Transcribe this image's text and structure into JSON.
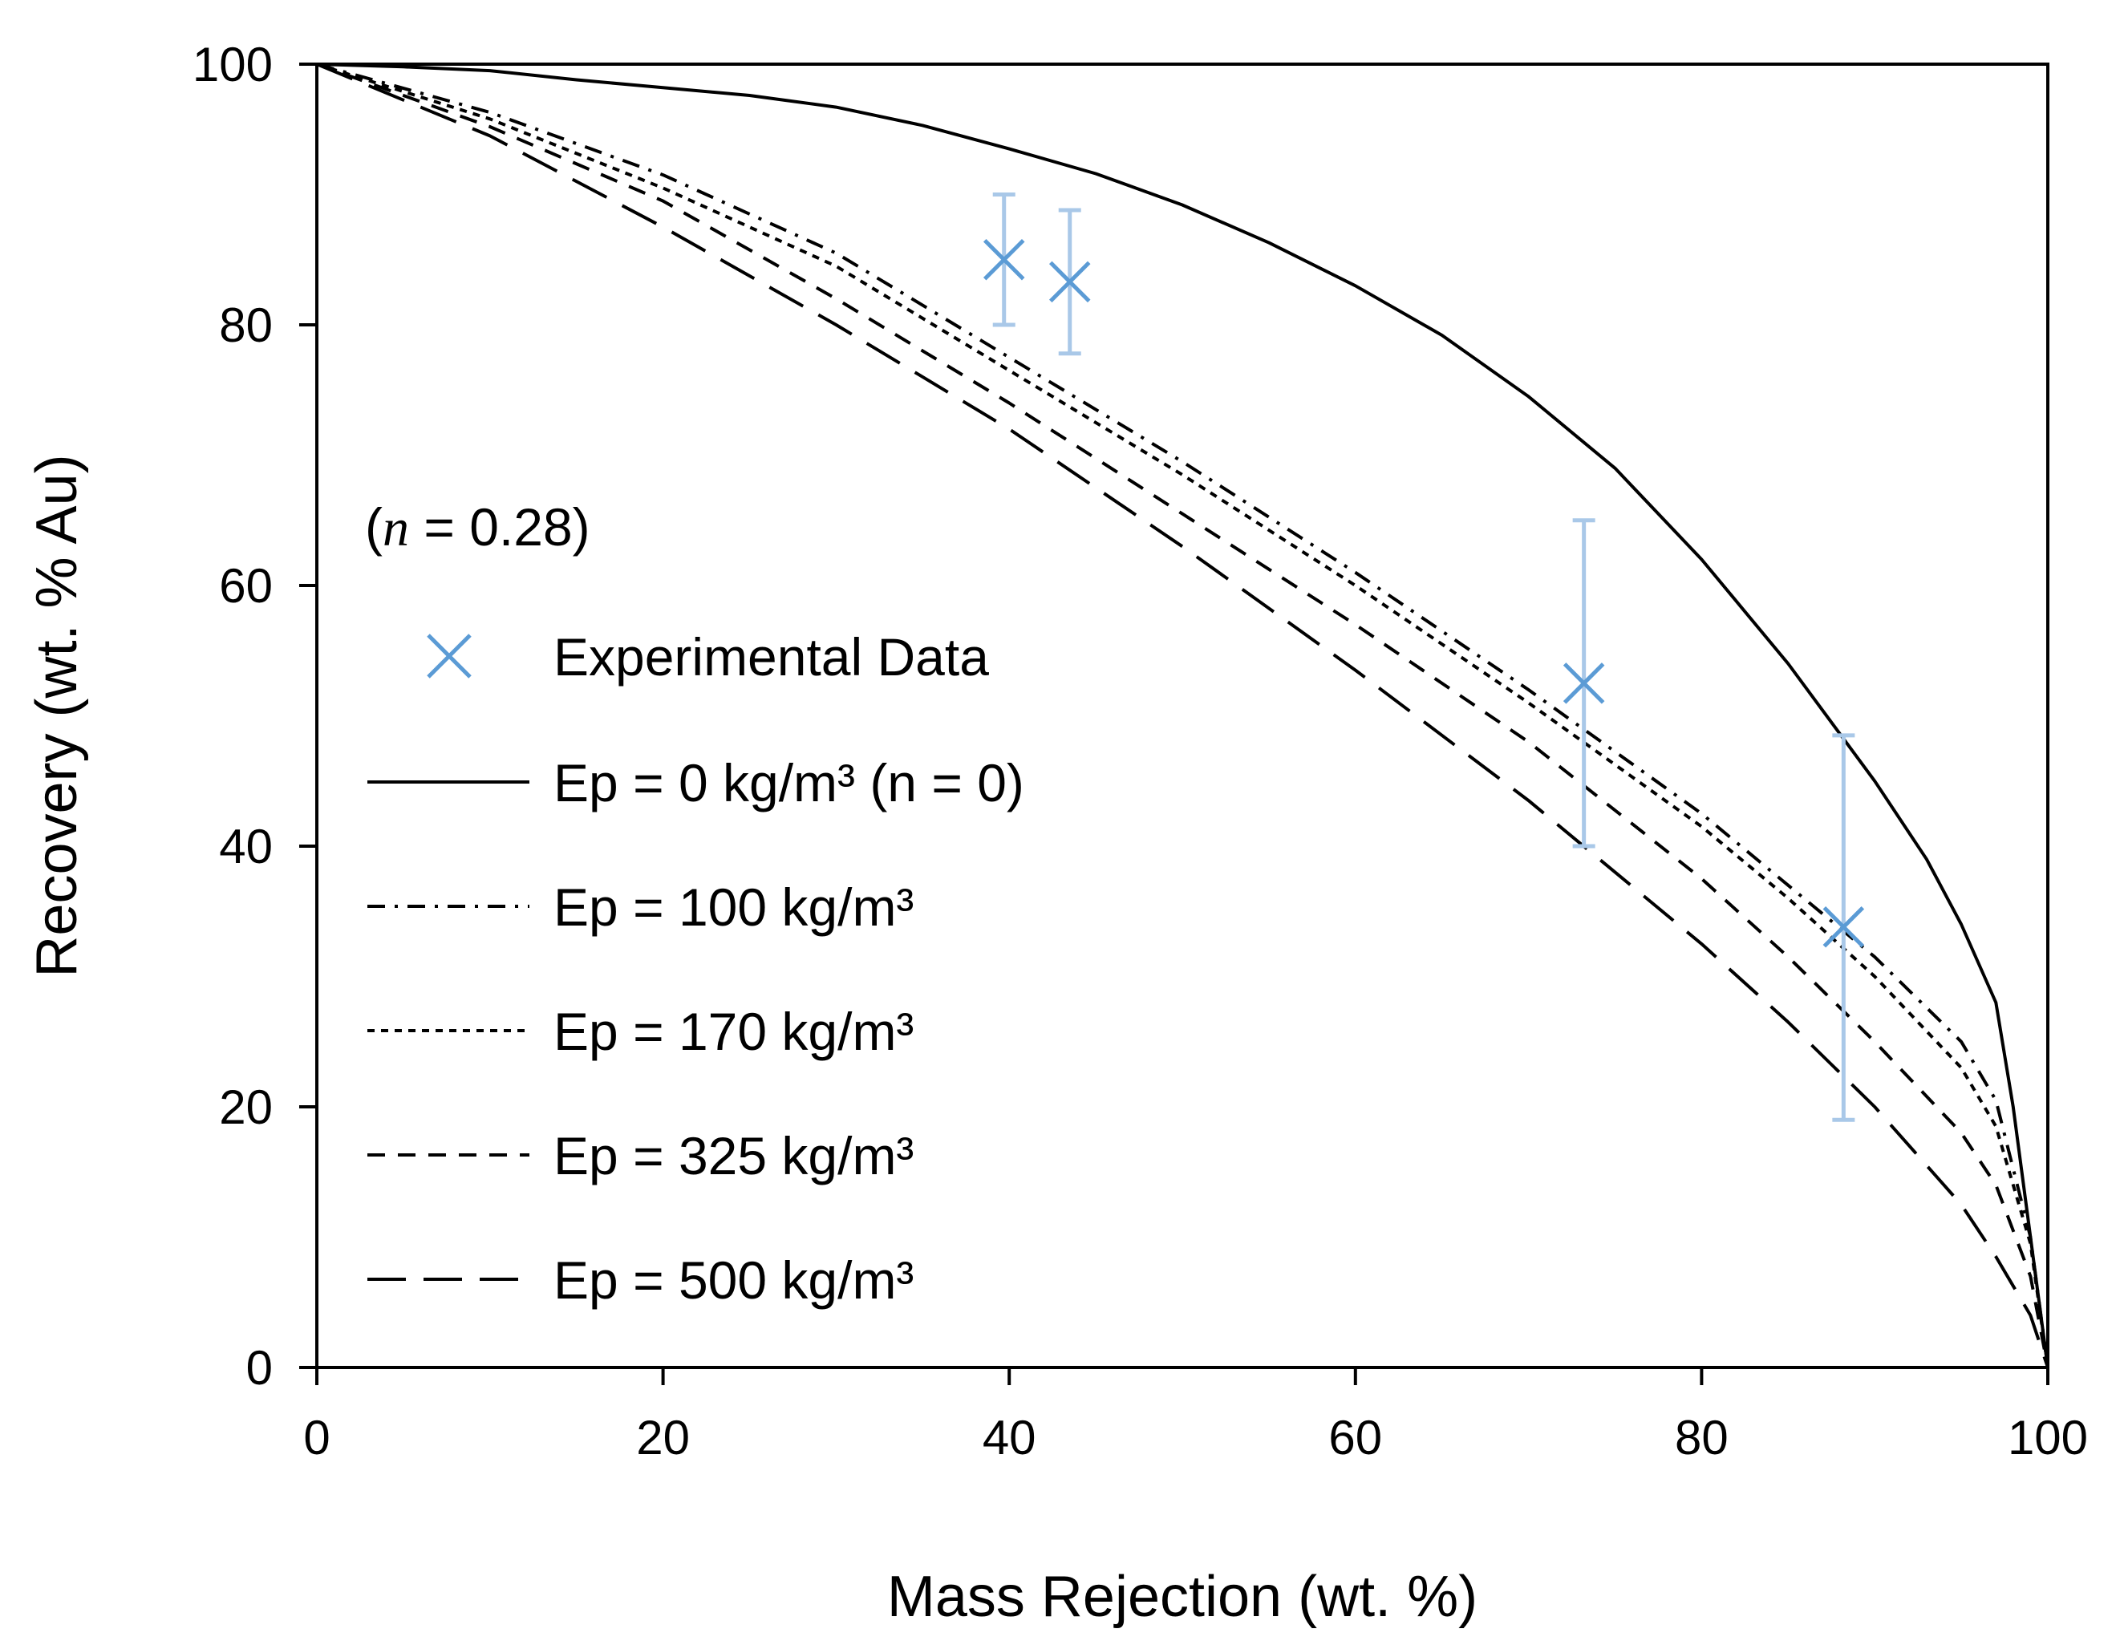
{
  "chart_data": {
    "type": "line",
    "title": "",
    "xlabel": "Mass Rejection (wt. %)",
    "ylabel": "Recovery (wt. % Au)",
    "xlim": [
      0,
      100
    ],
    "ylim": [
      0,
      100
    ],
    "x_ticks": [
      0,
      20,
      40,
      60,
      80,
      100
    ],
    "y_ticks": [
      0,
      20,
      40,
      60,
      80,
      100
    ],
    "x_tick_labels": [
      "0",
      "20",
      "40",
      "60",
      "80",
      "100"
    ],
    "y_tick_labels": [
      "0",
      "20",
      "40",
      "60",
      "80",
      "100"
    ],
    "grid": false,
    "legend_position": "center-left",
    "annotation": {
      "open_paren": "(",
      "symbol": "n",
      "value_text": " = 0.28)"
    },
    "series": [
      {
        "name": "Experimental Data",
        "kind": "scatter",
        "color": "#5b9bd5",
        "errorbar_color": "#a9c8e8",
        "points": [
          {
            "x": 39.7,
            "y": 85.0,
            "ylow": 80.0,
            "yhigh": 90.0
          },
          {
            "x": 43.5,
            "y": 83.3,
            "ylow": 77.8,
            "yhigh": 88.8
          },
          {
            "x": 73.2,
            "y": 52.5,
            "ylow": 40.0,
            "yhigh": 65.0
          },
          {
            "x": 88.2,
            "y": 33.8,
            "ylow": 19.0,
            "yhigh": 48.5
          }
        ]
      },
      {
        "name": "Ep = 0 kg/m³ (n = 0)",
        "kind": "line",
        "dash": "solid",
        "color": "#000000",
        "x": [
          0,
          5,
          10,
          15,
          20,
          25,
          30,
          35,
          40,
          45,
          50,
          55,
          60,
          65,
          70,
          75,
          80,
          85,
          90,
          93,
          95,
          97,
          98,
          99,
          100
        ],
        "y": [
          100,
          99.8,
          99.5,
          98.8,
          98.2,
          97.6,
          96.7,
          95.3,
          93.5,
          91.6,
          89.2,
          86.3,
          83.0,
          79.2,
          74.5,
          69.0,
          62.0,
          54.0,
          45.0,
          39.0,
          34.0,
          28.0,
          20.0,
          10.0,
          0
        ]
      },
      {
        "name": "Ep = 100 kg/m³",
        "kind": "line",
        "dash": "dashdot",
        "color": "#000000",
        "x": [
          0,
          10,
          20,
          30,
          40,
          50,
          60,
          70,
          80,
          85,
          90,
          95,
          97,
          99,
          100
        ],
        "y": [
          100,
          96.3,
          91.5,
          85.5,
          77.5,
          69.5,
          61.0,
          52.0,
          42.5,
          37.0,
          31.5,
          25.0,
          20.5,
          10.0,
          0
        ]
      },
      {
        "name": "Ep = 170 kg/m³",
        "kind": "line",
        "dash": "dotted",
        "color": "#000000",
        "x": [
          0,
          10,
          20,
          30,
          40,
          50,
          60,
          70,
          80,
          85,
          90,
          95,
          97,
          99,
          100
        ],
        "y": [
          100,
          95.8,
          90.5,
          84.5,
          76.5,
          68.5,
          60.0,
          51.0,
          41.5,
          36.0,
          30.0,
          23.0,
          18.5,
          9.5,
          0
        ]
      },
      {
        "name": "Ep = 325 kg/m³",
        "kind": "line",
        "dash": "dashed",
        "color": "#000000",
        "x": [
          0,
          10,
          20,
          30,
          40,
          50,
          60,
          70,
          80,
          85,
          90,
          95,
          97,
          99,
          100
        ],
        "y": [
          100,
          95.2,
          89.5,
          82.0,
          74.0,
          65.5,
          57.0,
          48.0,
          37.5,
          31.5,
          25.0,
          18.0,
          14.0,
          7.0,
          0
        ]
      },
      {
        "name": "Ep = 500 kg/m³",
        "kind": "line",
        "dash": "longdash",
        "color": "#000000",
        "x": [
          0,
          10,
          20,
          30,
          40,
          50,
          60,
          70,
          80,
          85,
          90,
          95,
          97,
          99,
          100
        ],
        "y": [
          100,
          94.5,
          87.5,
          80.0,
          72.0,
          63.0,
          53.5,
          43.5,
          32.5,
          26.5,
          20.0,
          12.5,
          8.5,
          4.0,
          0
        ]
      }
    ]
  }
}
